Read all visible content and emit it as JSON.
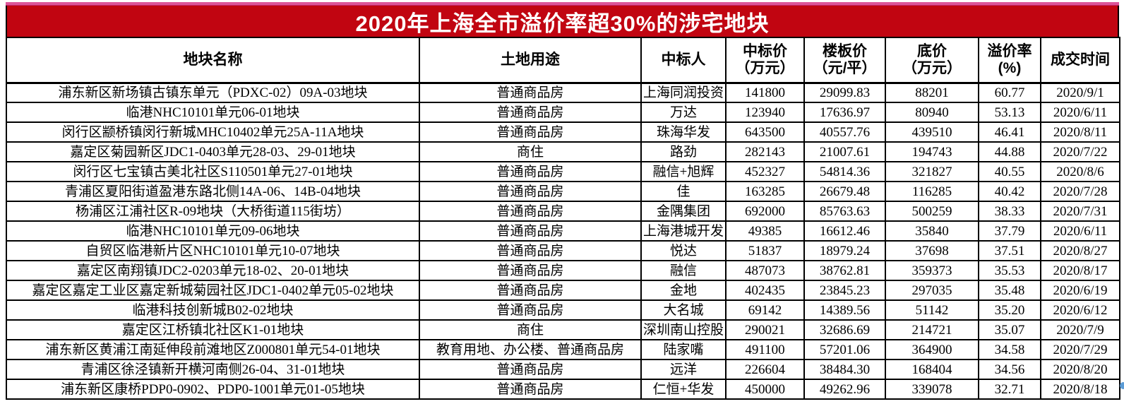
{
  "chart_data": {
    "type": "table",
    "title": "2020年上海全市溢价率超30%的涉宅地块",
    "columns": [
      {
        "key": "name",
        "label": "地块名称"
      },
      {
        "key": "land-use",
        "label": "土地用途"
      },
      {
        "key": "winner",
        "label": "中标人"
      },
      {
        "key": "winning-price",
        "label": "中标价\n（万元）"
      },
      {
        "key": "floor-price",
        "label": "楼板价\n（元/平）"
      },
      {
        "key": "base-price",
        "label": "底价\n（万元）"
      },
      {
        "key": "premium-rate",
        "label": "溢价率\n(%)"
      },
      {
        "key": "deal-date",
        "label": "成交时间"
      }
    ],
    "rows": [
      [
        "浦东新区新场镇古镇东单元（PDXC-02）09A-03地块",
        "普通商品房",
        "上海同润投资",
        "141800",
        "29099.83",
        "88201",
        "60.77",
        "2020/9/1"
      ],
      [
        "临港NHC10101单元06-01地块",
        "普通商品房",
        "万达",
        "123940",
        "17636.97",
        "80940",
        "53.13",
        "2020/6/11"
      ],
      [
        "闵行区颛桥镇闵行新城MHC10402单元25A-11A地块",
        "普通商品房",
        "珠海华发",
        "643500",
        "40557.76",
        "439510",
        "46.41",
        "2020/8/11"
      ],
      [
        "嘉定区菊园新区JDC1-0403单元28-03、29-01地块",
        "商住",
        "路劲",
        "282143",
        "21007.61",
        "194743",
        "44.88",
        "2020/7/22"
      ],
      [
        "闵行区七宝镇古美北社区S110501单元27-01地块",
        "普通商品房",
        "融信+旭辉",
        "452327",
        "54814.36",
        "321827",
        "40.55",
        "2020/8/6"
      ],
      [
        "青浦区夏阳街道盈港东路北侧14A-06、14B-04地块",
        "普通商品房",
        "佳",
        "163285",
        "26679.48",
        "116285",
        "40.42",
        "2020/7/28"
      ],
      [
        "杨浦区江浦社区R-09地块（大桥街道115街坊）",
        "普通商品房",
        "金隅集团",
        "692000",
        "85763.63",
        "500259",
        "38.33",
        "2020/7/31"
      ],
      [
        "临港NHC10101单元09-06地块",
        "普通商品房",
        "上海港城开发",
        "49385",
        "16612.46",
        "35840",
        "37.79",
        "2020/6/11"
      ],
      [
        "自贸区临港新片区NHC10101单元10-07地块",
        "普通商品房",
        "悦达",
        "51837",
        "18979.24",
        "37698",
        "37.51",
        "2020/8/27"
      ],
      [
        "嘉定区南翔镇JDC2-0203单元18-02、20-01地块",
        "普通商品房",
        "融信",
        "487073",
        "38762.81",
        "359373",
        "35.53",
        "2020/8/17"
      ],
      [
        "嘉定区嘉定工业区嘉定新城菊园社区JDC1-0402单元05-02地块",
        "普通商品房",
        "金地",
        "402435",
        "23845.23",
        "297035",
        "35.48",
        "2020/6/19"
      ],
      [
        "临港科技创新城B02-02地块",
        "普通商品房",
        "大名城",
        "69142",
        "14389.56",
        "51142",
        "35.20",
        "2020/6/12"
      ],
      [
        "嘉定区江桥镇北社区K1-01地块",
        "商住",
        "深圳南山控股",
        "290021",
        "32686.69",
        "214721",
        "35.07",
        "2020/7/9"
      ],
      [
        "浦东新区黄浦江南延伸段前滩地区Z000801单元54-01地块",
        "教育用地、办公楼、普通商品房",
        "陆家嘴",
        "491100",
        "57201.06",
        "364900",
        "34.58",
        "2020/7/29"
      ],
      [
        "青浦区徐泾镇新开横河南侧26-04、31-01地块",
        "普通商品房",
        "远洋",
        "226604",
        "38484.30",
        "168404",
        "34.56",
        "2020/8/20"
      ],
      [
        "浦东新区康桥PDP0-0902、PDP0-1001单元01-05地块",
        "普通商品房",
        "仁恒+华发",
        "450000",
        "49262.96",
        "339078",
        "32.71",
        "2020/8/18"
      ]
    ]
  },
  "colors": {
    "title_background": "#c10511",
    "title_text": "#ffffff",
    "top_accent_line": "#dc5598",
    "table_border": "#000000",
    "artifact_dot": "#5b9bd5"
  }
}
